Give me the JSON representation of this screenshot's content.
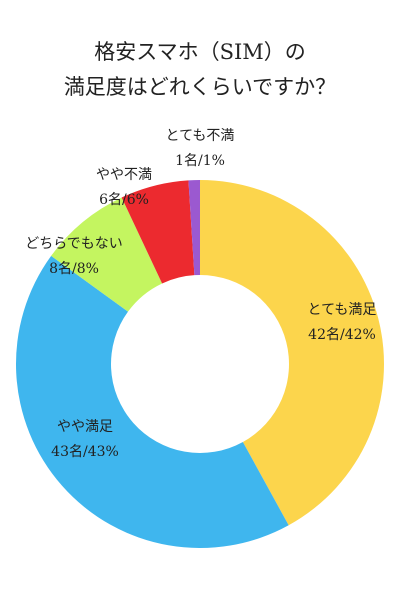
{
  "chart_data": {
    "type": "pie",
    "variant": "donut",
    "title_lines": [
      "格安スマホ（SIM）の",
      "満足度はどれくらいですか？"
    ],
    "slices": [
      {
        "label": "とても満足",
        "count_text": "42名/42%",
        "value": 42,
        "color": "#FCD54C"
      },
      {
        "label": "やや満足",
        "count_text": "43名/43%",
        "value": 43,
        "color": "#3FB6EE"
      },
      {
        "label": "どちらでもない",
        "count_text": "8名/8%",
        "value": 8,
        "color": "#C4F560"
      },
      {
        "label": "やや不満",
        "count_text": "6名/6%",
        "value": 6,
        "color": "#EC2A2F"
      },
      {
        "label": "とても不満",
        "count_text": "1名/1%",
        "value": 1,
        "color": "#9B59D0"
      }
    ],
    "start": "top",
    "direction": "clockwise",
    "legend": "none"
  }
}
